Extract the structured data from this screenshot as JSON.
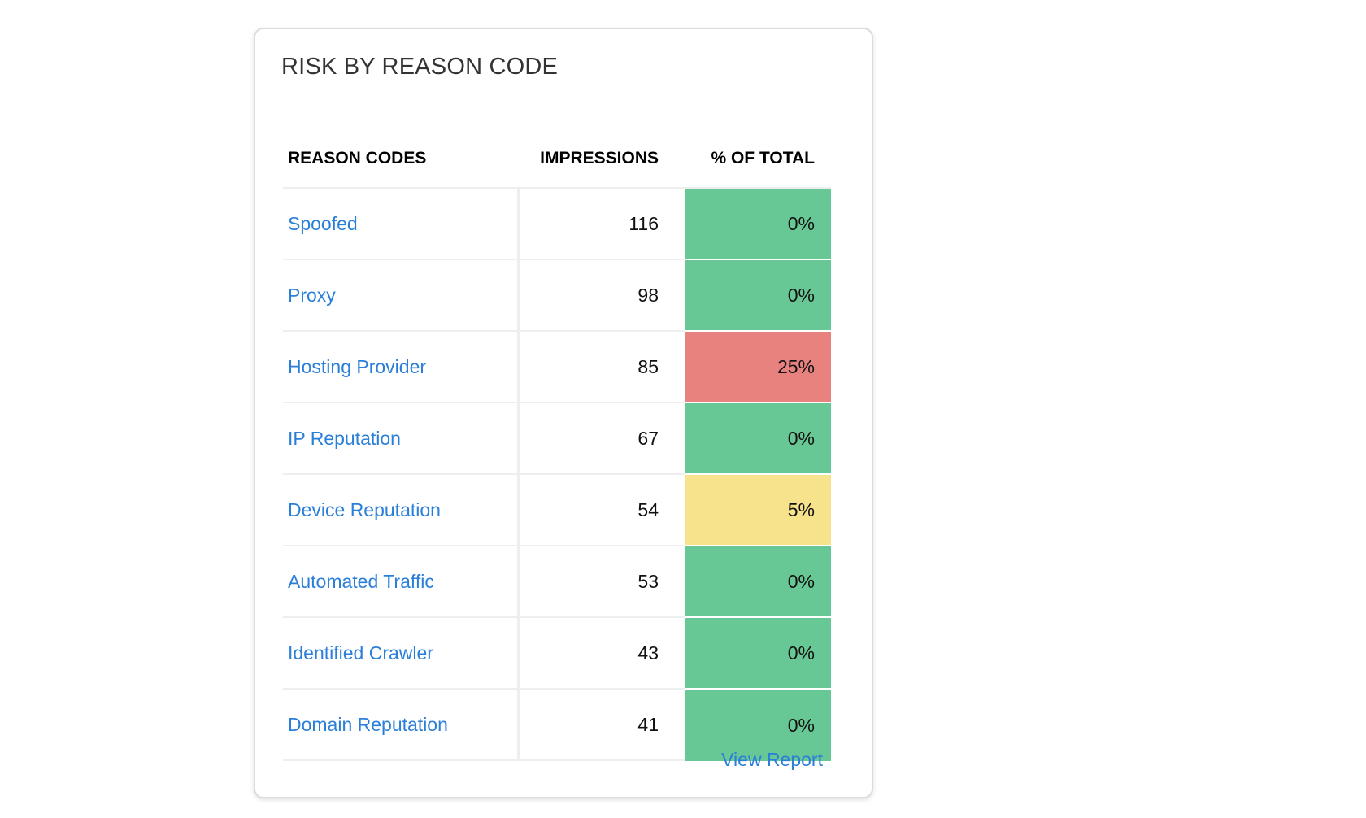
{
  "card": {
    "title": "RISK BY REASON CODE",
    "view_report_label": "View Report"
  },
  "table": {
    "headers": {
      "reason": "REASON CODES",
      "impressions": "IMPRESSIONS",
      "percent": "% OF TOTAL"
    },
    "rows": [
      {
        "reason": "Spoofed",
        "impressions": "116",
        "percent": "0%",
        "color": "#67c795"
      },
      {
        "reason": "Proxy",
        "impressions": "98",
        "percent": "0%",
        "color": "#67c795"
      },
      {
        "reason": "Hosting Provider",
        "impressions": "85",
        "percent": "25%",
        "color": "#e8827f"
      },
      {
        "reason": "IP Reputation",
        "impressions": "67",
        "percent": "0%",
        "color": "#67c795"
      },
      {
        "reason": "Device Reputation",
        "impressions": "54",
        "percent": "5%",
        "color": "#f7e38b"
      },
      {
        "reason": "Automated Traffic",
        "impressions": "53",
        "percent": "0%",
        "color": "#67c795"
      },
      {
        "reason": "Identified Crawler",
        "impressions": "43",
        "percent": "0%",
        "color": "#67c795"
      },
      {
        "reason": "Domain Reputation",
        "impressions": "41",
        "percent": "0%",
        "color": "#67c795"
      }
    ]
  }
}
